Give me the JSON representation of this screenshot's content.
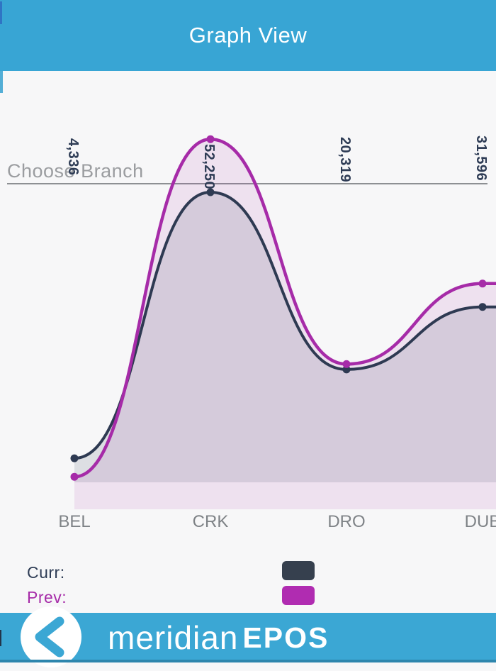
{
  "header": {
    "title": "Graph View"
  },
  "branch_select": {
    "placeholder": "Choose Branch"
  },
  "chart_data": {
    "type": "area",
    "categories": [
      "BEL",
      "CRK",
      "DRO",
      "DUB"
    ],
    "series": [
      {
        "name": "Curr",
        "color": "#2e3a52",
        "fill": "rgba(46,58,82,0.13)",
        "values": [
          4336,
          52250,
          20319,
          31596
        ]
      },
      {
        "name": "Prev",
        "color": "#a62ba8",
        "fill": "rgba(167,40,170,0.10)",
        "values": [
          1000,
          61800,
          21300,
          35800
        ]
      }
    ],
    "point_labels": [
      "4,336",
      "52,250",
      "20,319",
      "31,596"
    ],
    "point_label_rotation_deg": 90,
    "ylim": [
      0,
      66000
    ],
    "grid": false,
    "legend_position": "bottom-left"
  },
  "legend": {
    "items": [
      {
        "label": "Curr:",
        "color": "#36404e"
      },
      {
        "label": "Prev:",
        "color": "#b02cb1"
      }
    ]
  },
  "footer": {
    "back_icon": "chevron-left-icon",
    "brand_light": "meridian",
    "brand_bold": "EPOS"
  },
  "colors": {
    "header_bg": "#38a5d4",
    "footer_bg": "#3ba7d4",
    "page_bg": "#f7f7f8",
    "curr_line": "#2e3a52",
    "prev_line": "#a62ba8",
    "axis_label": "#7e8286",
    "placeholder_text": "#9b9da0"
  }
}
